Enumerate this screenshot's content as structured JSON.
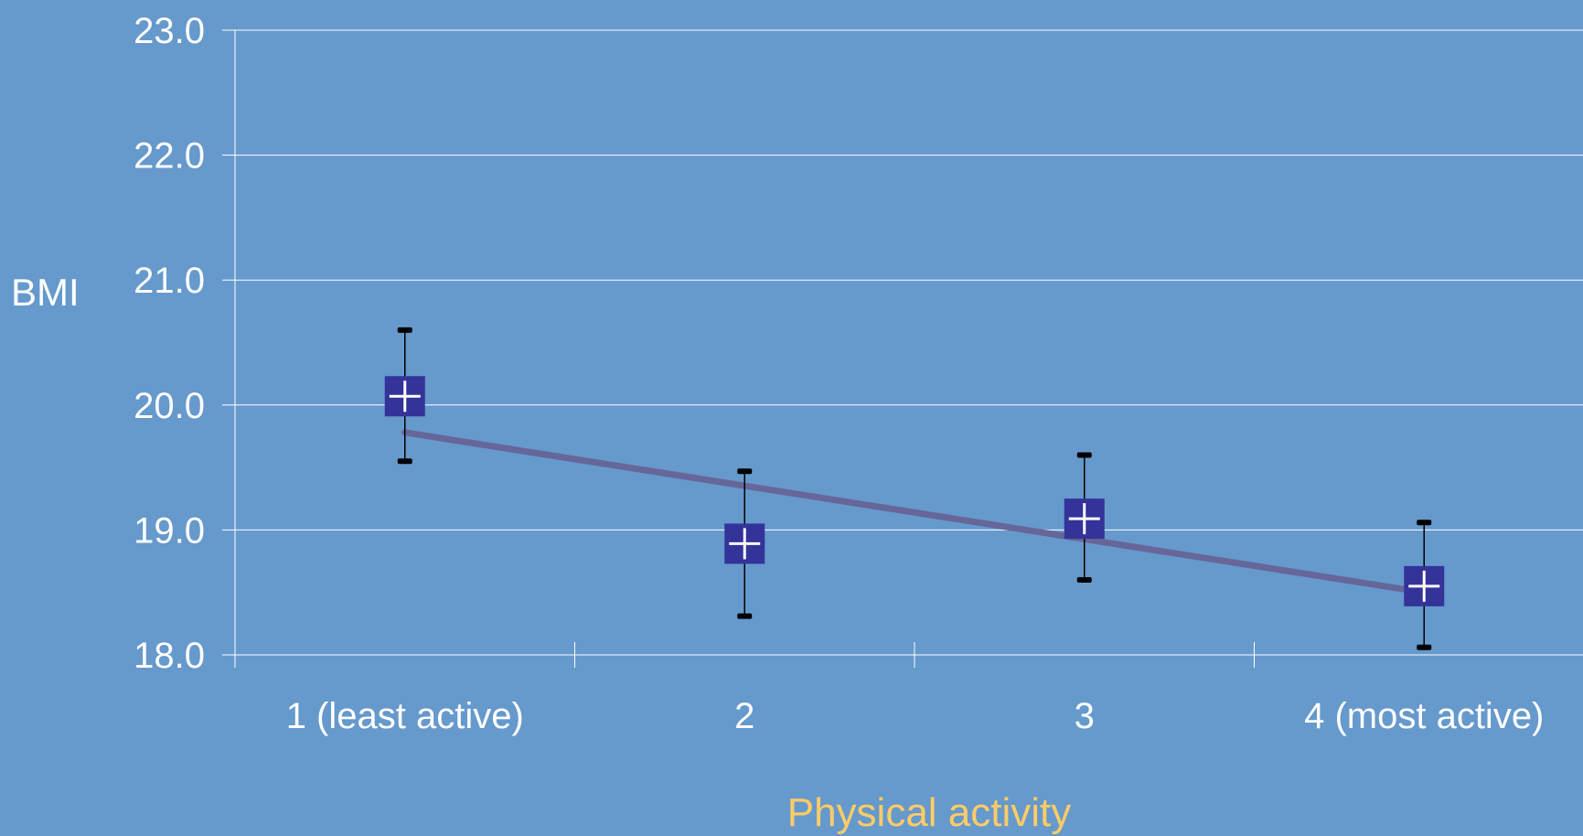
{
  "chart_data": {
    "type": "scatter",
    "title": "",
    "xlabel": "Physical activity",
    "ylabel": "BMI",
    "categories": [
      "1 (least active)",
      "2",
      "3",
      "4 (most active)"
    ],
    "ylim": [
      18.0,
      23.0
    ],
    "yticks": [
      "18.0",
      "19.0",
      "20.0",
      "21.0",
      "22.0",
      "23.0"
    ],
    "grid": true,
    "series": [
      {
        "values": [
          20.07,
          18.89,
          19.09,
          18.55
        ],
        "ci_low": [
          19.55,
          18.31,
          18.6,
          18.06
        ],
        "ci_high": [
          20.6,
          19.47,
          19.6,
          19.06
        ]
      }
    ],
    "trend_line": {
      "start": 19.78,
      "end": 18.5
    },
    "colors": {
      "background": "#6699cc",
      "marker": "#333399",
      "marker_cross": "#ffffff",
      "trend": "#666699",
      "grid": "#ffffff",
      "error_bar": "#000000",
      "xlabel": "#ffcc66"
    }
  }
}
